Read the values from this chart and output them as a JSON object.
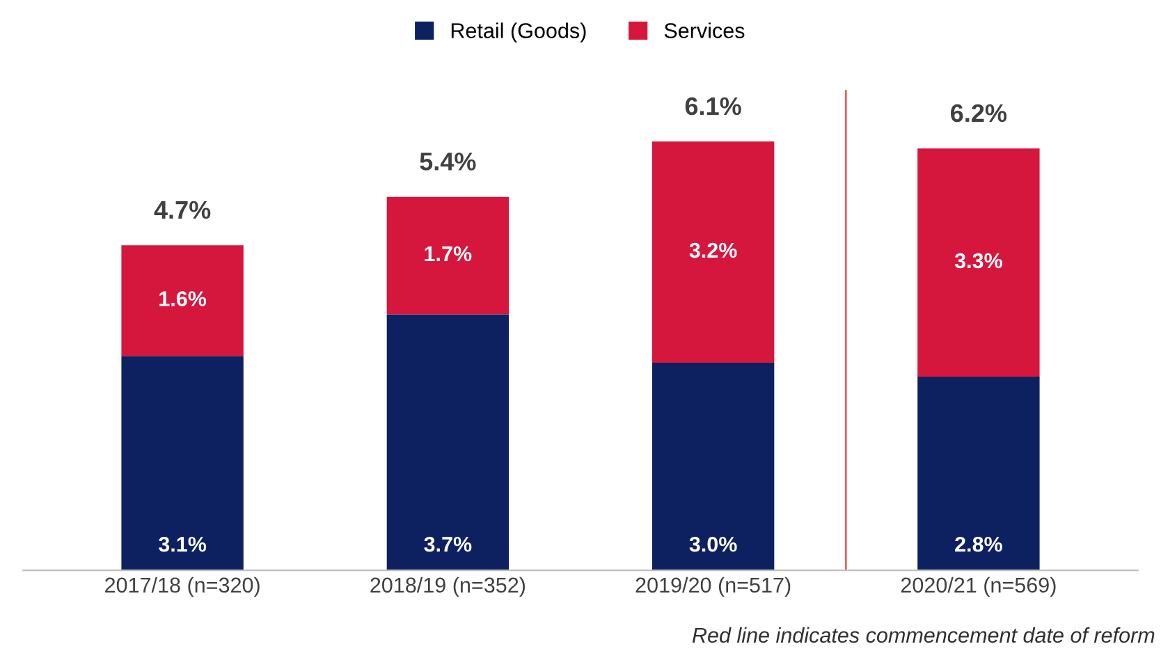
{
  "chart_data": {
    "type": "bar",
    "stacked": true,
    "categories": [
      "2017/18 (n=320)",
      "2018/19 (n=352)",
      "2019/20 (n=517)",
      "2020/21 (n=569)"
    ],
    "series": [
      {
        "name": "Retail (Goods)",
        "color": "#0d2160",
        "values": [
          3.1,
          3.7,
          3.0,
          2.8
        ],
        "value_labels": [
          "3.1%",
          "3.7%",
          "3.0%",
          "2.8%"
        ]
      },
      {
        "name": "Services",
        "color": "#d5173d",
        "values": [
          1.6,
          1.7,
          3.2,
          3.3
        ],
        "value_labels": [
          "1.6%",
          "1.7%",
          "3.2%",
          "3.3%"
        ]
      }
    ],
    "totals": [
      "4.7%",
      "5.4%",
      "6.1%",
      "6.2%"
    ],
    "ref_lines": [
      {
        "axis": "x",
        "value": "2020/21 (n=569)",
        "color": "#e06060"
      }
    ],
    "annotations": [
      "Red line indicates commencement date of reform"
    ],
    "legend": "top",
    "grid": false,
    "tick_labels": "x"
  }
}
